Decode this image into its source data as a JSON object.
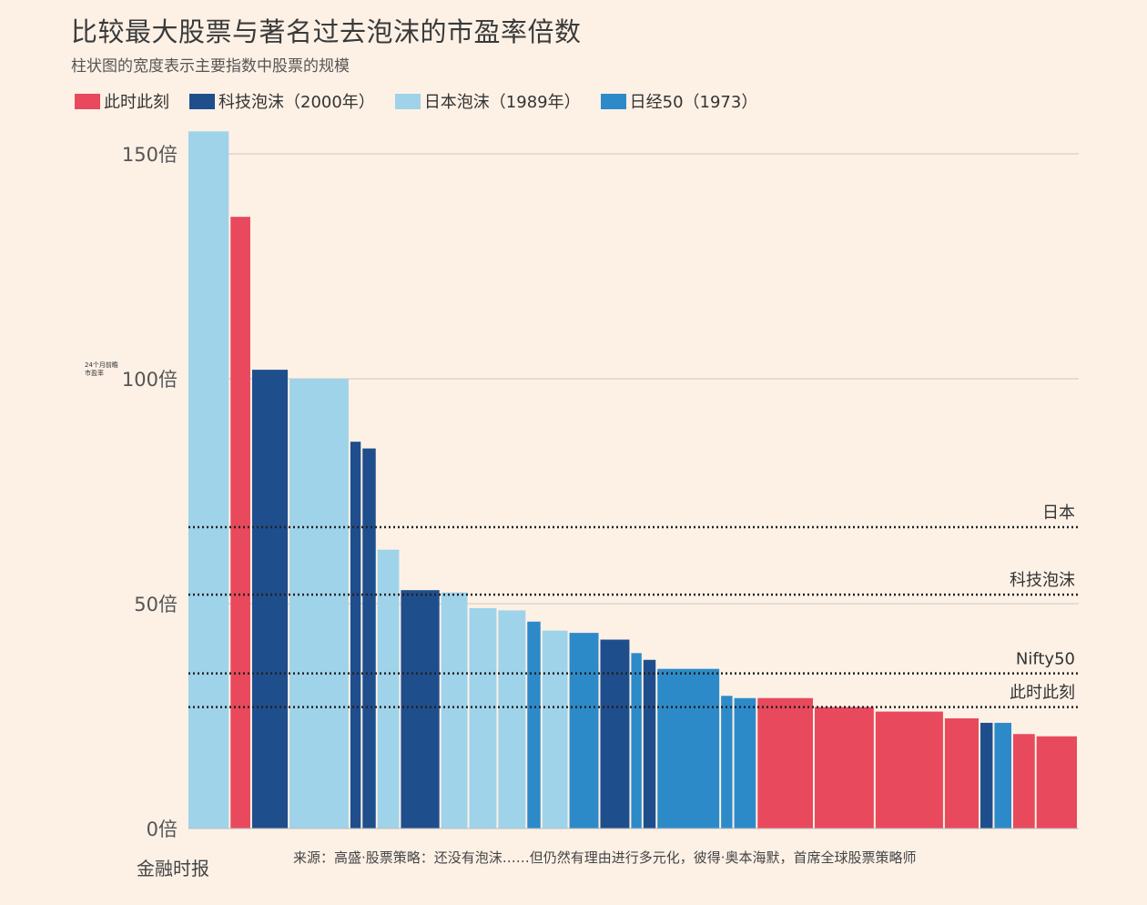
{
  "title": "比较最大股票与著名过去泡沫的市盈率倍数",
  "subtitle": "柱状图的宽度表示主要指数中股票的规模",
  "legend": [
    {
      "label": "此时此刻",
      "color": "#e8495c"
    },
    {
      "label": "科技泡沫（2000年）",
      "color": "#1f4e8c"
    },
    {
      "label": "日本泡沫（1989年）",
      "color": "#9fd3e9"
    },
    {
      "label": "日经50（1973）",
      "color": "#2d8ac9"
    }
  ],
  "footer": {
    "brand": "金融时报",
    "source": "来源：高盛·股票策略：还没有泡沫……但仍然有理由进行多元化，彼得·奥本海默，首席全球股票策略师"
  },
  "chart_data": {
    "type": "bar",
    "title": "比较最大股票与著名过去泡沫的市盈率倍数",
    "ylabel": "24个月前瞻市盈率",
    "ylim": [
      0,
      155
    ],
    "yticks": [
      {
        "value": 0,
        "label": "0倍"
      },
      {
        "value": 50,
        "label": "50倍"
      },
      {
        "value": 100,
        "label": "100倍"
      },
      {
        "value": 150,
        "label": "150倍"
      }
    ],
    "reference_lines": [
      {
        "label": "日本",
        "value": 67
      },
      {
        "label": "科技泡沫",
        "value": 52
      },
      {
        "label": "Nifty50",
        "value": 34.5
      },
      {
        "label": "此时此刻",
        "value": 27
      }
    ],
    "bars": [
      {
        "series": "日本泡沫（1989年）",
        "value": 155,
        "width": 4.5
      },
      {
        "series": "此时此刻",
        "value": 136,
        "width": 2.3
      },
      {
        "series": "科技泡沫（2000年）",
        "value": 102,
        "width": 4
      },
      {
        "series": "日本泡沫（1989年）",
        "value": 100,
        "width": 6.5
      },
      {
        "series": "科技泡沫（2000年）",
        "value": 86,
        "width": 1.3
      },
      {
        "series": "科技泡沫（2000年）",
        "value": 84.5,
        "width": 1.6
      },
      {
        "series": "日本泡沫（1989年）",
        "value": 62,
        "width": 2.5
      },
      {
        "series": "科技泡沫（2000年）",
        "value": 53,
        "width": 4.3
      },
      {
        "series": "日本泡沫（1989年）",
        "value": 52.5,
        "width": 3
      },
      {
        "series": "日本泡沫（1989年）",
        "value": 49,
        "width": 3.1
      },
      {
        "series": "日本泡沫（1989年）",
        "value": 48.5,
        "width": 3.1
      },
      {
        "series": "日经50（1973）",
        "value": 46,
        "width": 1.6
      },
      {
        "series": "日本泡沫（1989年）",
        "value": 44,
        "width": 2.9
      },
      {
        "series": "日经50（1973）",
        "value": 43.5,
        "width": 3.3
      },
      {
        "series": "科技泡沫（2000年）",
        "value": 42,
        "width": 3.3
      },
      {
        "series": "日经50（1973）",
        "value": 39,
        "width": 1.3
      },
      {
        "series": "科技泡沫（2000年）",
        "value": 37.5,
        "width": 1.5
      },
      {
        "series": "日经50（1973）",
        "value": 35.5,
        "width": 6.8
      },
      {
        "series": "日经50（1973）",
        "value": 29.5,
        "width": 1.4
      },
      {
        "series": "日经50（1973）",
        "value": 29,
        "width": 2.5
      },
      {
        "series": "此时此刻",
        "value": 29,
        "width": 6.1
      },
      {
        "series": "此时此刻",
        "value": 27,
        "width": 6.5
      },
      {
        "series": "此时此刻",
        "value": 26,
        "width": 7.4
      },
      {
        "series": "此时此刻",
        "value": 24.5,
        "width": 3.8
      },
      {
        "series": "科技泡沫（2000年）",
        "value": 23.5,
        "width": 1.5
      },
      {
        "series": "日经50（1973）",
        "value": 23.5,
        "width": 2
      },
      {
        "series": "此时此刻",
        "value": 21,
        "width": 2.5
      },
      {
        "series": "此时此刻",
        "value": 20.5,
        "width": 4.5
      }
    ]
  }
}
